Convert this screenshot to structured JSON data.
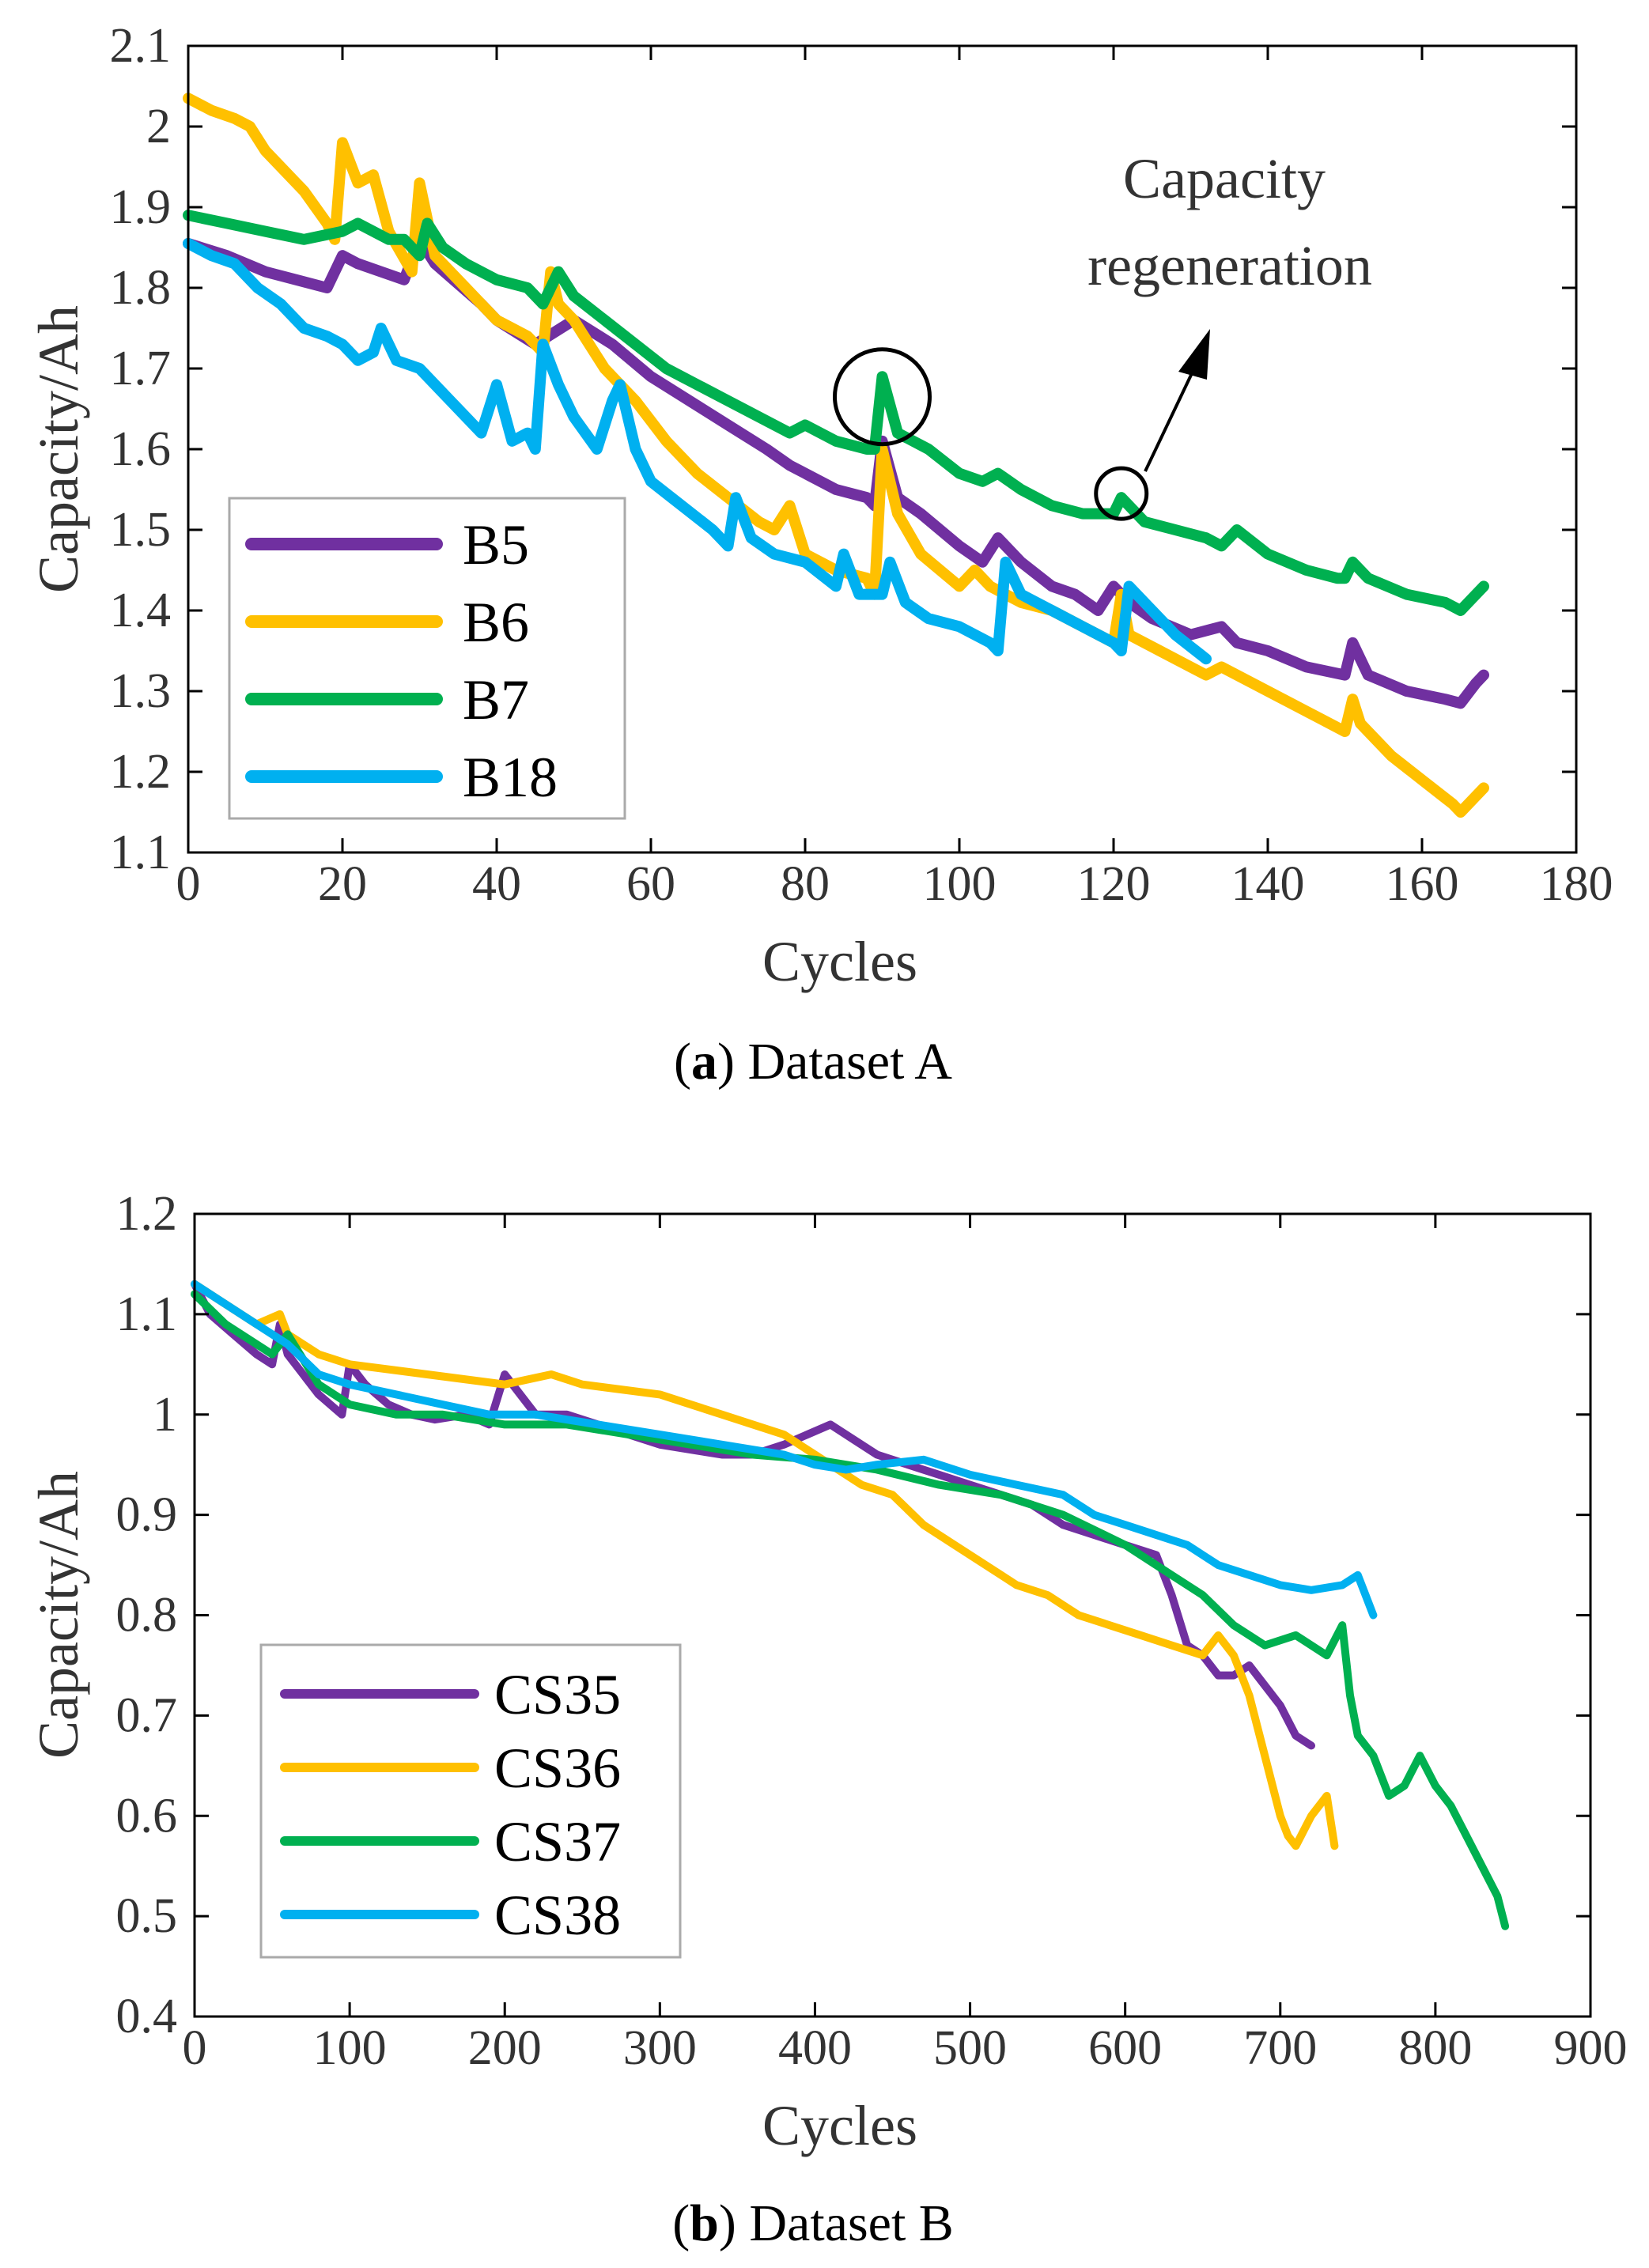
{
  "chart_data": [
    {
      "type": "line",
      "panel": "a",
      "caption_letter": "a",
      "caption_text": "Dataset A",
      "title": "",
      "xlabel": "Cycles",
      "ylabel": "Capacity/Ah",
      "xlim": [
        0,
        180
      ],
      "ylim": [
        1.1,
        2.1
      ],
      "xticks": [
        0,
        20,
        40,
        60,
        80,
        100,
        120,
        140,
        160,
        180
      ],
      "yticks": [
        1.1,
        1.2,
        1.3,
        1.4,
        1.5,
        1.6,
        1.7,
        1.8,
        1.9,
        2.0,
        2.1
      ],
      "ytick_labels": [
        "1.1",
        "1.2",
        "1.3",
        "1.4",
        "1.5",
        "1.6",
        "1.7",
        "1.8",
        "1.9",
        "2",
        "2.1"
      ],
      "legend_position": "bottom-left",
      "grid": false,
      "annotation": {
        "text_line1": "Capacity",
        "text_line2": "regeneration",
        "big_circle": {
          "x": 90,
          "y": 1.665
        },
        "small_circle": {
          "x": 121,
          "y": 1.545
        }
      },
      "series": [
        {
          "name": "B5",
          "color": "#7030A0",
          "x": [
            0,
            5,
            10,
            18,
            20,
            22,
            28,
            30,
            32,
            38,
            40,
            45,
            50,
            55,
            60,
            65,
            70,
            75,
            78,
            80,
            84,
            88,
            89,
            90,
            92,
            95,
            100,
            103,
            105,
            108,
            112,
            115,
            118,
            120,
            122,
            125,
            130,
            134,
            136,
            140,
            145,
            150,
            151,
            153,
            158,
            163,
            165,
            167,
            168
          ],
          "y": [
            1.855,
            1.84,
            1.82,
            1.8,
            1.84,
            1.83,
            1.81,
            1.86,
            1.83,
            1.78,
            1.76,
            1.73,
            1.76,
            1.73,
            1.69,
            1.66,
            1.63,
            1.6,
            1.58,
            1.57,
            1.55,
            1.54,
            1.53,
            1.61,
            1.54,
            1.52,
            1.48,
            1.46,
            1.49,
            1.46,
            1.43,
            1.42,
            1.4,
            1.43,
            1.41,
            1.39,
            1.37,
            1.38,
            1.36,
            1.35,
            1.33,
            1.32,
            1.36,
            1.32,
            1.3,
            1.29,
            1.285,
            1.31,
            1.32
          ]
        },
        {
          "name": "B6",
          "color": "#FFC000",
          "x": [
            0,
            3,
            6,
            8,
            10,
            15,
            18,
            19,
            20,
            22,
            24,
            26,
            29,
            30,
            32,
            36,
            40,
            44,
            46,
            47,
            48,
            50,
            54,
            58,
            62,
            66,
            70,
            74,
            76,
            78,
            80,
            84,
            88,
            89,
            90,
            92,
            95,
            100,
            102,
            104,
            108,
            112,
            116,
            120,
            121,
            122,
            126,
            130,
            132,
            134,
            138,
            142,
            146,
            150,
            151,
            152,
            156,
            160,
            164,
            165,
            167,
            168
          ],
          "y": [
            2.035,
            2.02,
            2.01,
            2.0,
            1.97,
            1.92,
            1.88,
            1.86,
            1.98,
            1.93,
            1.94,
            1.87,
            1.82,
            1.93,
            1.84,
            1.8,
            1.76,
            1.74,
            1.72,
            1.82,
            1.78,
            1.76,
            1.7,
            1.66,
            1.61,
            1.57,
            1.54,
            1.51,
            1.5,
            1.53,
            1.47,
            1.45,
            1.44,
            1.42,
            1.6,
            1.52,
            1.47,
            1.43,
            1.45,
            1.43,
            1.41,
            1.4,
            1.38,
            1.36,
            1.42,
            1.37,
            1.35,
            1.33,
            1.32,
            1.33,
            1.31,
            1.29,
            1.27,
            1.25,
            1.29,
            1.26,
            1.22,
            1.19,
            1.16,
            1.15,
            1.17,
            1.18
          ]
        },
        {
          "name": "B7",
          "color": "#00B050",
          "x": [
            0,
            5,
            10,
            15,
            20,
            22,
            26,
            28,
            30,
            31,
            33,
            36,
            40,
            44,
            46,
            48,
            50,
            54,
            58,
            62,
            66,
            70,
            74,
            78,
            80,
            84,
            88,
            89,
            90,
            92,
            96,
            100,
            103,
            105,
            108,
            112,
            116,
            120,
            121,
            124,
            128,
            132,
            134,
            136,
            140,
            145,
            149,
            150,
            151,
            153,
            158,
            163,
            165,
            166,
            168
          ],
          "y": [
            1.89,
            1.88,
            1.87,
            1.86,
            1.87,
            1.88,
            1.86,
            1.86,
            1.84,
            1.88,
            1.85,
            1.83,
            1.81,
            1.8,
            1.78,
            1.82,
            1.79,
            1.76,
            1.73,
            1.7,
            1.68,
            1.66,
            1.64,
            1.62,
            1.63,
            1.61,
            1.6,
            1.6,
            1.69,
            1.62,
            1.6,
            1.57,
            1.56,
            1.57,
            1.55,
            1.53,
            1.52,
            1.52,
            1.54,
            1.51,
            1.5,
            1.49,
            1.48,
            1.5,
            1.47,
            1.45,
            1.44,
            1.44,
            1.46,
            1.44,
            1.42,
            1.41,
            1.4,
            1.41,
            1.43
          ]
        },
        {
          "name": "B18",
          "color": "#00B0F0",
          "x": [
            0,
            3,
            6,
            9,
            12,
            15,
            18,
            20,
            22,
            24,
            25,
            27,
            30,
            34,
            38,
            40,
            42,
            44,
            45,
            46,
            48,
            50,
            53,
            55,
            56,
            58,
            60,
            64,
            68,
            70,
            71,
            73,
            76,
            80,
            84,
            85,
            87,
            90,
            91,
            93,
            96,
            100,
            104,
            105,
            106,
            108,
            112,
            116,
            120,
            121,
            122,
            125,
            128,
            132
          ],
          "y": [
            1.855,
            1.84,
            1.83,
            1.8,
            1.78,
            1.75,
            1.74,
            1.73,
            1.71,
            1.72,
            1.75,
            1.71,
            1.7,
            1.66,
            1.62,
            1.68,
            1.61,
            1.62,
            1.6,
            1.73,
            1.68,
            1.64,
            1.6,
            1.66,
            1.68,
            1.6,
            1.56,
            1.53,
            1.5,
            1.48,
            1.54,
            1.49,
            1.47,
            1.46,
            1.43,
            1.47,
            1.42,
            1.42,
            1.46,
            1.41,
            1.39,
            1.38,
            1.36,
            1.35,
            1.46,
            1.42,
            1.4,
            1.38,
            1.36,
            1.35,
            1.43,
            1.4,
            1.37,
            1.34
          ]
        }
      ]
    },
    {
      "type": "line",
      "panel": "b",
      "caption_letter": "b",
      "caption_text": "Dataset B",
      "title": "",
      "xlabel": "Cycles",
      "ylabel": "Capacity/Ah",
      "xlim": [
        0,
        900
      ],
      "ylim": [
        0.4,
        1.2
      ],
      "xticks": [
        0,
        100,
        200,
        300,
        400,
        500,
        600,
        700,
        800,
        900
      ],
      "yticks": [
        0.4,
        0.5,
        0.6,
        0.7,
        0.8,
        0.9,
        1.0,
        1.1,
        1.2
      ],
      "ytick_labels": [
        "0.4",
        "0.5",
        "0.6",
        "0.7",
        "0.8",
        "0.9",
        "1",
        "1.1",
        "1.2"
      ],
      "legend_position": "bottom-left",
      "grid": false,
      "series": [
        {
          "name": "CS35",
          "color": "#7030A0",
          "x": [
            0,
            10,
            25,
            40,
            50,
            55,
            60,
            70,
            80,
            95,
            100,
            110,
            125,
            140,
            155,
            175,
            190,
            200,
            205,
            220,
            240,
            260,
            280,
            300,
            320,
            340,
            360,
            380,
            395,
            410,
            425,
            440,
            460,
            480,
            500,
            520,
            540,
            560,
            580,
            600,
            620,
            630,
            640,
            650,
            660,
            670,
            680,
            690,
            700,
            710,
            720
          ],
          "y": [
            1.13,
            1.1,
            1.08,
            1.06,
            1.05,
            1.09,
            1.06,
            1.04,
            1.02,
            1.0,
            1.05,
            1.03,
            1.01,
            1.0,
            0.995,
            1.0,
            0.99,
            1.04,
            1.03,
            1.0,
            1.0,
            0.99,
            0.98,
            0.97,
            0.965,
            0.96,
            0.96,
            0.97,
            0.98,
            0.99,
            0.975,
            0.96,
            0.95,
            0.94,
            0.93,
            0.92,
            0.91,
            0.89,
            0.88,
            0.87,
            0.86,
            0.82,
            0.77,
            0.76,
            0.74,
            0.74,
            0.75,
            0.73,
            0.71,
            0.68,
            0.67
          ]
        },
        {
          "name": "CS36",
          "color": "#FFC000",
          "x": [
            0,
            20,
            40,
            55,
            60,
            80,
            100,
            150,
            200,
            230,
            250,
            300,
            340,
            380,
            400,
            430,
            450,
            470,
            490,
            510,
            530,
            550,
            570,
            590,
            610,
            630,
            650,
            660,
            670,
            680,
            690,
            700,
            705,
            710,
            720,
            730,
            735
          ],
          "y": [
            1.13,
            1.11,
            1.09,
            1.1,
            1.08,
            1.06,
            1.05,
            1.04,
            1.03,
            1.04,
            1.03,
            1.02,
            1.0,
            0.98,
            0.96,
            0.93,
            0.92,
            0.89,
            0.87,
            0.85,
            0.83,
            0.82,
            0.8,
            0.79,
            0.78,
            0.77,
            0.76,
            0.78,
            0.76,
            0.72,
            0.66,
            0.6,
            0.58,
            0.57,
            0.6,
            0.62,
            0.57
          ]
        },
        {
          "name": "CS37",
          "color": "#00B050",
          "x": [
            0,
            20,
            50,
            60,
            80,
            100,
            130,
            160,
            200,
            240,
            280,
            320,
            360,
            400,
            440,
            480,
            520,
            560,
            600,
            630,
            650,
            670,
            690,
            710,
            730,
            740,
            745,
            750,
            760,
            770,
            780,
            790,
            800,
            810,
            820,
            830,
            840,
            845
          ],
          "y": [
            1.12,
            1.09,
            1.06,
            1.08,
            1.03,
            1.01,
            1.0,
            1.0,
            0.99,
            0.99,
            0.98,
            0.97,
            0.96,
            0.955,
            0.945,
            0.93,
            0.92,
            0.9,
            0.87,
            0.84,
            0.82,
            0.79,
            0.77,
            0.78,
            0.76,
            0.79,
            0.72,
            0.68,
            0.66,
            0.62,
            0.63,
            0.66,
            0.63,
            0.61,
            0.58,
            0.55,
            0.52,
            0.49
          ]
        },
        {
          "name": "CS38",
          "color": "#00B0F0",
          "x": [
            0,
            20,
            40,
            60,
            80,
            100,
            130,
            160,
            190,
            220,
            260,
            300,
            340,
            380,
            400,
            420,
            440,
            470,
            500,
            530,
            560,
            580,
            600,
            620,
            640,
            660,
            680,
            700,
            720,
            740,
            750,
            755,
            760
          ],
          "y": [
            1.13,
            1.11,
            1.09,
            1.07,
            1.04,
            1.03,
            1.02,
            1.01,
            1.0,
            1.0,
            0.99,
            0.98,
            0.97,
            0.96,
            0.95,
            0.945,
            0.95,
            0.955,
            0.94,
            0.93,
            0.92,
            0.9,
            0.89,
            0.88,
            0.87,
            0.85,
            0.84,
            0.83,
            0.825,
            0.83,
            0.84,
            0.82,
            0.8
          ]
        }
      ]
    }
  ]
}
